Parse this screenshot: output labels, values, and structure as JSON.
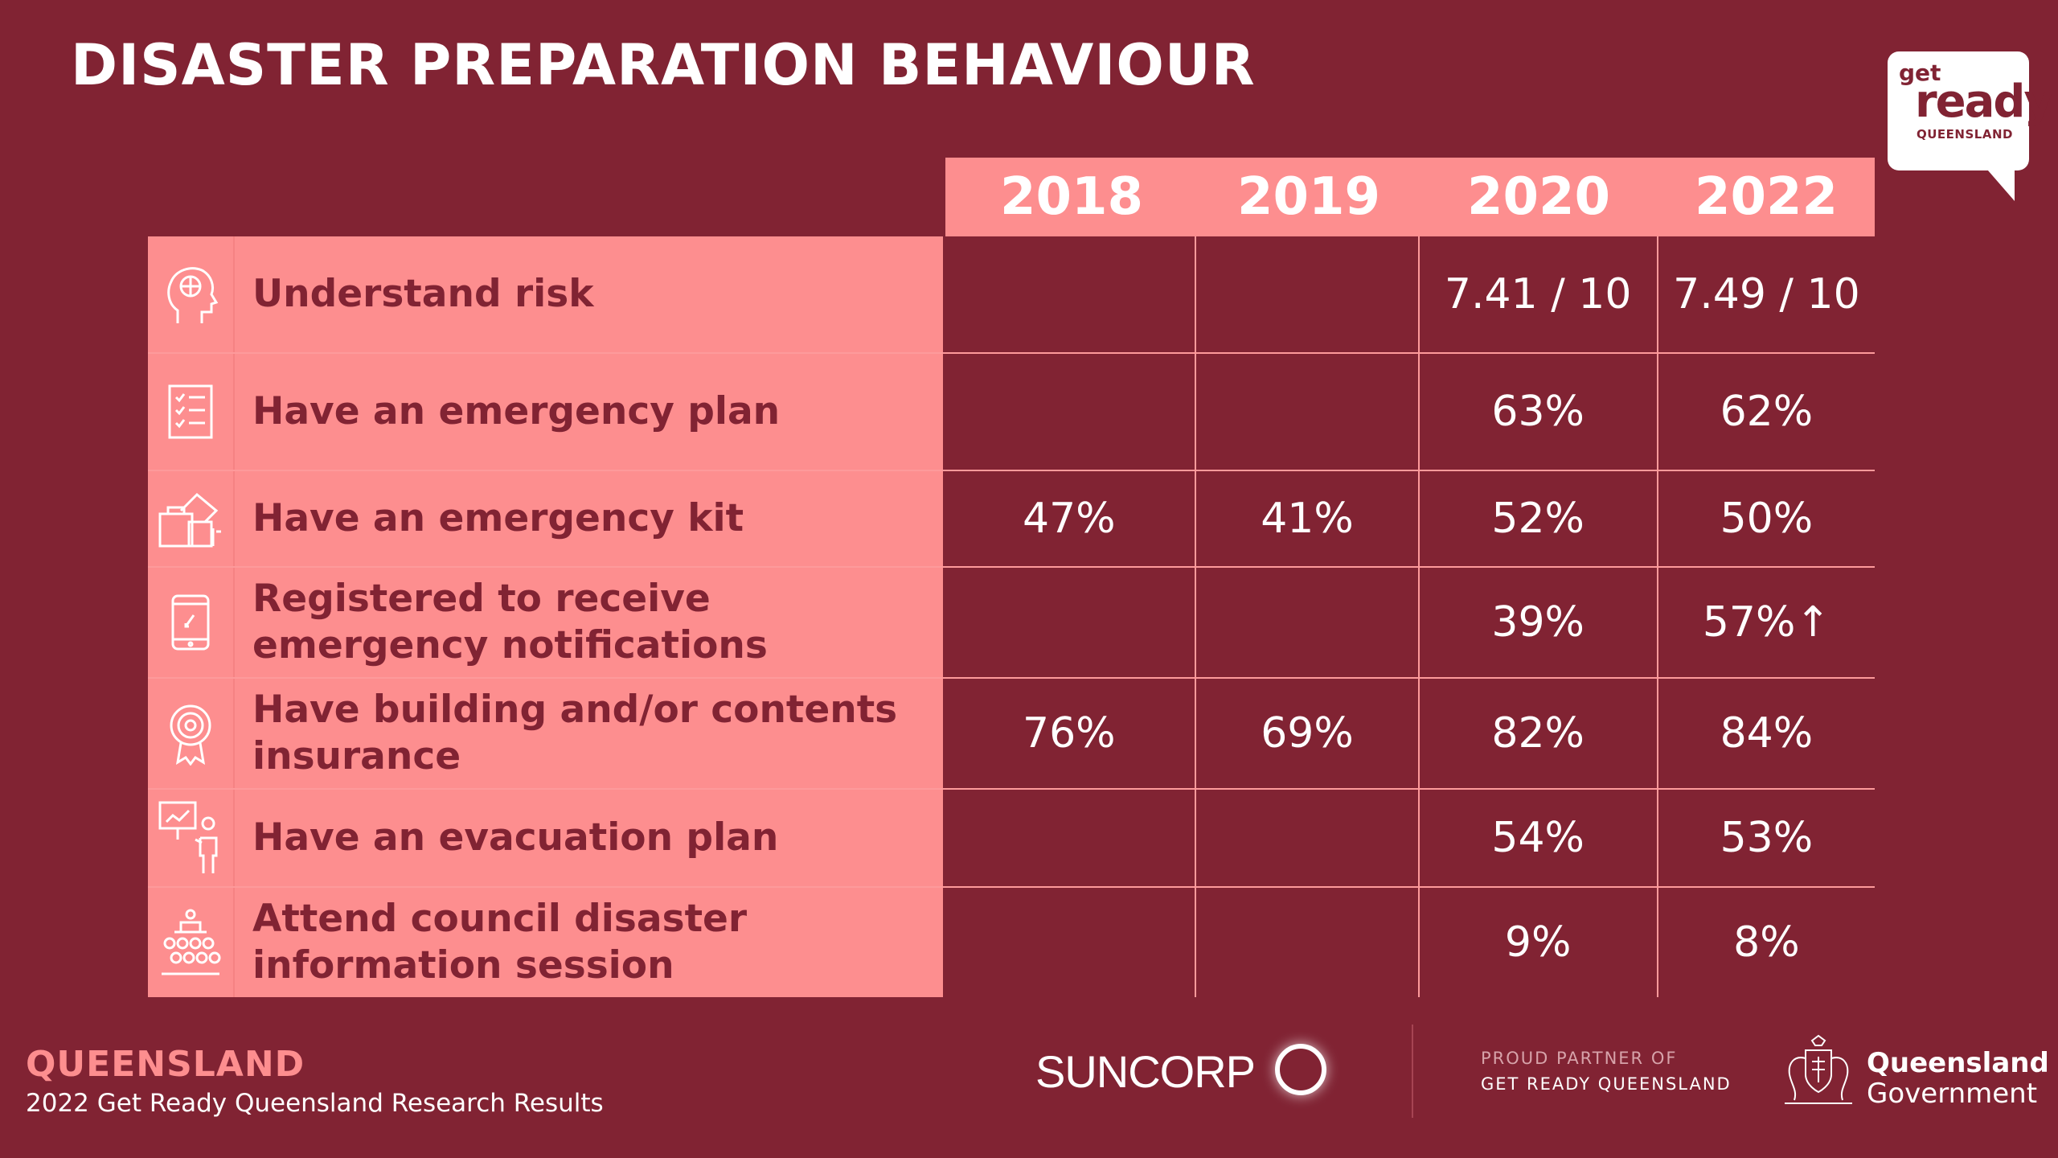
{
  "title": "DISASTER PREPARATION BEHAVIOUR",
  "logo": {
    "get": "get",
    "ready": "ready",
    "region": "QUEENSLAND"
  },
  "table": {
    "years": [
      "2018",
      "2019",
      "2020",
      "2022"
    ],
    "rows": [
      {
        "icon": "brain-head-icon",
        "label": "Understand risk",
        "values": [
          "",
          "",
          "7.41 / 10",
          "7.49 / 10"
        ]
      },
      {
        "icon": "checklist-icon",
        "label": "Have an emergency plan",
        "values": [
          "",
          "",
          "63%",
          "62%"
        ]
      },
      {
        "icon": "emergency-kit-icon",
        "label": "Have an emergency kit",
        "values": [
          "47%",
          "41%",
          "52%",
          "50%"
        ]
      },
      {
        "icon": "mobile-phone-icon",
        "label": "Registered to receive emergency notifications",
        "values": [
          "",
          "",
          "39%",
          "57%↑"
        ]
      },
      {
        "icon": "award-badge-icon",
        "label": "Have building and/or contents insurance",
        "values": [
          "76%",
          "69%",
          "82%",
          "84%"
        ]
      },
      {
        "icon": "presentation-board-icon",
        "label": "Have an evacuation plan",
        "values": [
          "",
          "",
          "54%",
          "53%"
        ]
      },
      {
        "icon": "audience-session-icon",
        "label": "Attend council disaster information session",
        "values": [
          "",
          "",
          "9%",
          "8%"
        ]
      }
    ]
  },
  "footer": {
    "title": "QUEENSLAND",
    "subtitle": "2022 Get Ready Queensland Research Results",
    "sponsor": "SUNCORP",
    "partner_line1": "PROUD PARTNER OF",
    "partner_line2": "GET READY QUEENSLAND",
    "gov_line1": "Queensland",
    "gov_line2": "Government"
  },
  "colors": {
    "background": "#812333",
    "accent": "#fd8e8f",
    "text": "#ffffff"
  }
}
